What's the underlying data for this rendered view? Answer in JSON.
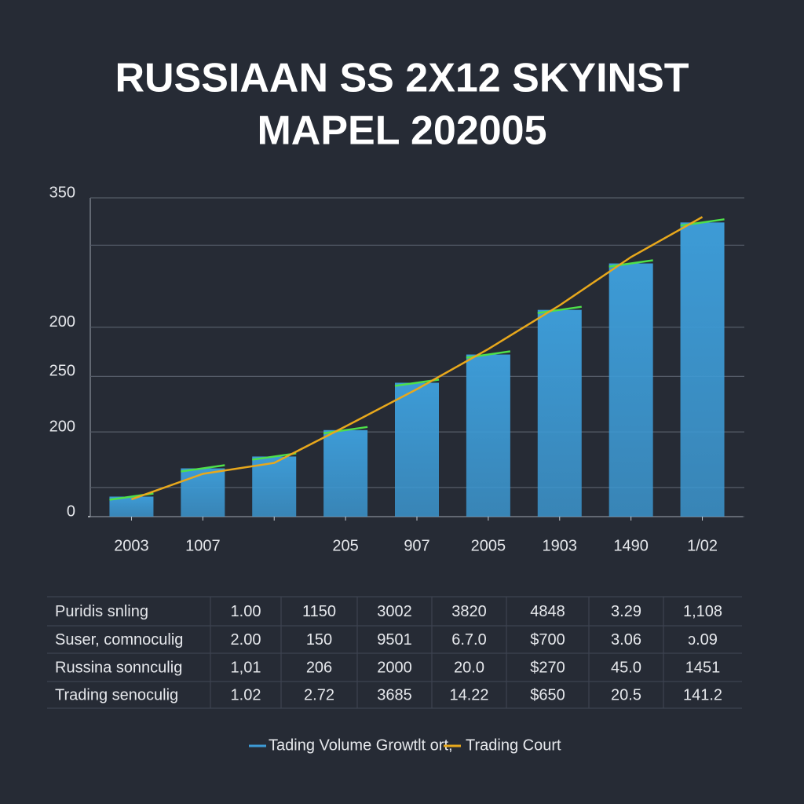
{
  "chart_data": {
    "type": "bar",
    "title": [
      "RUSSIAAN SS 2X12 SKYINST",
      "MAPEL 202005"
    ],
    "categories": [
      "2003",
      "1007",
      null,
      "205",
      "907",
      "2005",
      "1903",
      "1490",
      "1/02"
    ],
    "series": [
      {
        "name": "Tading Volume Growtlt ort,",
        "type": "bar",
        "color": "#3d9bd6",
        "values": [
          22,
          53,
          66,
          95,
          147,
          178,
          227,
          278,
          323
        ]
      },
      {
        "name": "Trading Court",
        "type": "line",
        "color": "#e8a81c",
        "values": [
          19,
          47,
          59,
          99,
          140,
          184,
          232,
          285,
          329
        ]
      }
    ],
    "highlight_color": "#4ee04a",
    "ylim": [
      0,
      350
    ],
    "yticks": [
      0,
      {
        "value": 32,
        "label": null
      },
      {
        "value": 93,
        "label": "200"
      },
      {
        "value": 154,
        "label": "250"
      },
      {
        "value": 208,
        "label": "200"
      },
      {
        "value": 298,
        "label": null
      },
      350
    ],
    "grid": true
  },
  "table": {
    "rows": [
      [
        "Puridis snling",
        "1.00",
        "1150",
        "3002",
        "3820",
        "4848",
        "3.29",
        "1,108"
      ],
      [
        "Suser, comnoculig",
        "2.00",
        "150",
        "9501",
        "6.7.0",
        "$700",
        "3.06",
        "ɔ.09"
      ],
      [
        "Russina sonnculig",
        "1,01",
        "206",
        "2000",
        "20.0",
        "$270",
        "45.0",
        "1451"
      ],
      [
        "Trading senoculig",
        "1.02",
        "2.72",
        "3685",
        "14.22",
        "$650",
        "20.5",
        "141.2"
      ]
    ]
  }
}
